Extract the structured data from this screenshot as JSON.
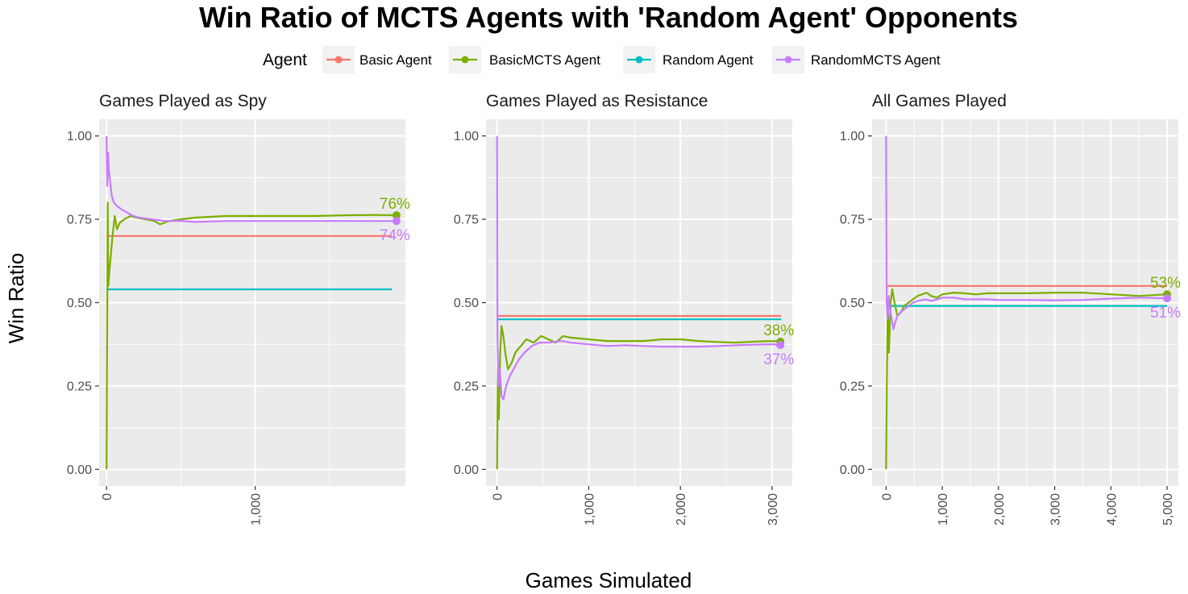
{
  "chart_data": {
    "type": "line",
    "title": "Win Ratio of MCTS Agents with 'Random Agent' Opponents",
    "xlabel": "Games Simulated",
    "ylabel": "Win Ratio",
    "legend": {
      "title": "Agent",
      "placement": "top",
      "entries": [
        {
          "name": "Basic Agent",
          "color": "#F8766D"
        },
        {
          "name": "BasicMCTS Agent",
          "color": "#7CAE00"
        },
        {
          "name": "Random Agent",
          "color": "#00BFC4"
        },
        {
          "name": "RandomMCTS Agent",
          "color": "#C77CFF"
        }
      ]
    },
    "grid": true,
    "panels": [
      {
        "title": "Games Played as Spy",
        "xlim": [
          -50,
          2010
        ],
        "ylim": [
          -0.05,
          1.05
        ],
        "xticks": [
          0,
          1000
        ],
        "xtick_labels": [
          "0",
          "1,000"
        ],
        "yticks": [
          0,
          0.25,
          0.5,
          0.75,
          1.0
        ],
        "ytick_labels": [
          "0.00",
          "0.25",
          "0.50",
          "0.75",
          "1.00"
        ],
        "series": [
          {
            "name": "Basic Agent",
            "points": [
              [
                0,
                0.7
              ],
              [
                1920,
                0.7
              ]
            ]
          },
          {
            "name": "Random Agent",
            "points": [
              [
                0,
                0.54
              ],
              [
                1920,
                0.54
              ]
            ]
          },
          {
            "name": "BasicMCTS Agent",
            "points": [
              [
                0,
                0.0
              ],
              [
                5,
                0.5
              ],
              [
                8,
                0.8
              ],
              [
                12,
                0.55
              ],
              [
                20,
                0.6
              ],
              [
                30,
                0.65
              ],
              [
                40,
                0.7
              ],
              [
                55,
                0.76
              ],
              [
                70,
                0.72
              ],
              [
                90,
                0.74
              ],
              [
                120,
                0.75
              ],
              [
                160,
                0.76
              ],
              [
                200,
                0.755
              ],
              [
                260,
                0.75
              ],
              [
                320,
                0.745
              ],
              [
                360,
                0.735
              ],
              [
                420,
                0.745
              ],
              [
                500,
                0.75
              ],
              [
                600,
                0.755
              ],
              [
                800,
                0.76
              ],
              [
                1000,
                0.76
              ],
              [
                1200,
                0.76
              ],
              [
                1400,
                0.76
              ],
              [
                1600,
                0.762
              ],
              [
                1800,
                0.763
              ],
              [
                1950,
                0.762
              ]
            ]
          },
          {
            "name": "RandomMCTS Agent",
            "points": [
              [
                0,
                1.0
              ],
              [
                5,
                0.85
              ],
              [
                10,
                0.95
              ],
              [
                15,
                0.9
              ],
              [
                25,
                0.86
              ],
              [
                35,
                0.82
              ],
              [
                50,
                0.8
              ],
              [
                70,
                0.79
              ],
              [
                100,
                0.78
              ],
              [
                140,
                0.77
              ],
              [
                180,
                0.76
              ],
              [
                220,
                0.755
              ],
              [
                300,
                0.75
              ],
              [
                400,
                0.745
              ],
              [
                500,
                0.745
              ],
              [
                600,
                0.742
              ],
              [
                800,
                0.745
              ],
              [
                1000,
                0.745
              ],
              [
                1200,
                0.745
              ],
              [
                1400,
                0.745
              ],
              [
                1600,
                0.745
              ],
              [
                1800,
                0.745
              ],
              [
                1950,
                0.745
              ]
            ]
          }
        ],
        "end_labels": [
          {
            "name": "BasicMCTS Agent",
            "x": 1950,
            "y": 0.762,
            "text": "76%",
            "position": "above"
          },
          {
            "name": "RandomMCTS Agent",
            "x": 1950,
            "y": 0.745,
            "text": "74%",
            "position": "below"
          }
        ]
      },
      {
        "title": "Games Played as Resistance",
        "xlim": [
          -120,
          3220
        ],
        "ylim": [
          -0.05,
          1.05
        ],
        "xticks": [
          0,
          1000,
          2000,
          3000
        ],
        "xtick_labels": [
          "0",
          "1,000",
          "2,000",
          "3,000"
        ],
        "yticks": [
          0,
          0.25,
          0.5,
          0.75,
          1.0
        ],
        "ytick_labels": [
          "0.00",
          "0.25",
          "0.50",
          "0.75",
          "1.00"
        ],
        "series": [
          {
            "name": "Basic Agent",
            "points": [
              [
                0,
                0.46
              ],
              [
                3100,
                0.46
              ]
            ]
          },
          {
            "name": "Random Agent",
            "points": [
              [
                0,
                0.45
              ],
              [
                3100,
                0.45
              ]
            ]
          },
          {
            "name": "BasicMCTS Agent",
            "points": [
              [
                0,
                0.0
              ],
              [
                10,
                0.3
              ],
              [
                20,
                0.15
              ],
              [
                35,
                0.35
              ],
              [
                50,
                0.43
              ],
              [
                70,
                0.4
              ],
              [
                90,
                0.35
              ],
              [
                120,
                0.3
              ],
              [
                160,
                0.32
              ],
              [
                200,
                0.35
              ],
              [
                260,
                0.37
              ],
              [
                320,
                0.39
              ],
              [
                400,
                0.38
              ],
              [
                480,
                0.4
              ],
              [
                560,
                0.39
              ],
              [
                640,
                0.38
              ],
              [
                720,
                0.4
              ],
              [
                800,
                0.395
              ],
              [
                1000,
                0.39
              ],
              [
                1200,
                0.385
              ],
              [
                1400,
                0.385
              ],
              [
                1600,
                0.385
              ],
              [
                1800,
                0.39
              ],
              [
                2000,
                0.39
              ],
              [
                2200,
                0.385
              ],
              [
                2400,
                0.382
              ],
              [
                2600,
                0.38
              ],
              [
                2800,
                0.383
              ],
              [
                3000,
                0.385
              ],
              [
                3090,
                0.383
              ]
            ]
          },
          {
            "name": "RandomMCTS Agent",
            "points": [
              [
                0,
                1.0
              ],
              [
                5,
                0.4
              ],
              [
                15,
                0.25
              ],
              [
                30,
                0.3
              ],
              [
                50,
                0.22
              ],
              [
                70,
                0.21
              ],
              [
                100,
                0.25
              ],
              [
                140,
                0.28
              ],
              [
                180,
                0.3
              ],
              [
                240,
                0.33
              ],
              [
                300,
                0.35
              ],
              [
                380,
                0.37
              ],
              [
                460,
                0.38
              ],
              [
                560,
                0.38
              ],
              [
                700,
                0.385
              ],
              [
                800,
                0.38
              ],
              [
                1000,
                0.375
              ],
              [
                1200,
                0.37
              ],
              [
                1400,
                0.372
              ],
              [
                1600,
                0.37
              ],
              [
                1800,
                0.368
              ],
              [
                2000,
                0.368
              ],
              [
                2200,
                0.368
              ],
              [
                2400,
                0.37
              ],
              [
                2600,
                0.372
              ],
              [
                2800,
                0.374
              ],
              [
                3000,
                0.375
              ],
              [
                3090,
                0.373
              ]
            ]
          }
        ],
        "end_labels": [
          {
            "name": "BasicMCTS Agent",
            "x": 3090,
            "y": 0.383,
            "text": "38%",
            "position": "above"
          },
          {
            "name": "RandomMCTS Agent",
            "x": 3090,
            "y": 0.373,
            "text": "37%",
            "position": "below"
          }
        ]
      },
      {
        "title": "All Games Played",
        "xlim": [
          -250,
          5200
        ],
        "ylim": [
          -0.05,
          1.05
        ],
        "xticks": [
          0,
          1000,
          2000,
          3000,
          4000,
          5000
        ],
        "xtick_labels": [
          "0",
          "1,000",
          "2,000",
          "3,000",
          "4,000",
          "5,000"
        ],
        "yticks": [
          0,
          0.25,
          0.5,
          0.75,
          1.0
        ],
        "ytick_labels": [
          "0.00",
          "0.25",
          "0.50",
          "0.75",
          "1.00"
        ],
        "series": [
          {
            "name": "Basic Agent",
            "points": [
              [
                0,
                0.55
              ],
              [
                5000,
                0.55
              ]
            ]
          },
          {
            "name": "Random Agent",
            "points": [
              [
                0,
                0.49
              ],
              [
                5000,
                0.49
              ]
            ]
          },
          {
            "name": "BasicMCTS Agent",
            "points": [
              [
                0,
                0.0
              ],
              [
                15,
                0.3
              ],
              [
                30,
                0.5
              ],
              [
                50,
                0.35
              ],
              [
                80,
                0.5
              ],
              [
                110,
                0.54
              ],
              [
                150,
                0.5
              ],
              [
                200,
                0.46
              ],
              [
                260,
                0.47
              ],
              [
                320,
                0.49
              ],
              [
                400,
                0.5
              ],
              [
                480,
                0.51
              ],
              [
                560,
                0.52
              ],
              [
                640,
                0.525
              ],
              [
                720,
                0.53
              ],
              [
                800,
                0.52
              ],
              [
                900,
                0.515
              ],
              [
                1000,
                0.525
              ],
              [
                1200,
                0.53
              ],
              [
                1400,
                0.528
              ],
              [
                1600,
                0.525
              ],
              [
                1800,
                0.528
              ],
              [
                2000,
                0.528
              ],
              [
                2500,
                0.528
              ],
              [
                3000,
                0.53
              ],
              [
                3500,
                0.53
              ],
              [
                4000,
                0.525
              ],
              [
                4500,
                0.52
              ],
              [
                5000,
                0.525
              ]
            ]
          },
          {
            "name": "RandomMCTS Agent",
            "points": [
              [
                0,
                1.0
              ],
              [
                10,
                0.5
              ],
              [
                25,
                0.45
              ],
              [
                45,
                0.52
              ],
              [
                70,
                0.48
              ],
              [
                100,
                0.45
              ],
              [
                130,
                0.42
              ],
              [
                160,
                0.44
              ],
              [
                200,
                0.46
              ],
              [
                250,
                0.47
              ],
              [
                320,
                0.48
              ],
              [
                400,
                0.49
              ],
              [
                480,
                0.5
              ],
              [
                560,
                0.505
              ],
              [
                700,
                0.51
              ],
              [
                800,
                0.505
              ],
              [
                900,
                0.51
              ],
              [
                1000,
                0.515
              ],
              [
                1200,
                0.515
              ],
              [
                1400,
                0.51
              ],
              [
                1600,
                0.51
              ],
              [
                1800,
                0.51
              ],
              [
                2000,
                0.508
              ],
              [
                2500,
                0.508
              ],
              [
                3000,
                0.507
              ],
              [
                3500,
                0.508
              ],
              [
                4000,
                0.512
              ],
              [
                4500,
                0.515
              ],
              [
                5000,
                0.513
              ]
            ]
          }
        ],
        "end_labels": [
          {
            "name": "BasicMCTS Agent",
            "x": 5000,
            "y": 0.525,
            "text": "53%",
            "position": "above"
          },
          {
            "name": "RandomMCTS Agent",
            "x": 5000,
            "y": 0.513,
            "text": "51%",
            "position": "below"
          }
        ]
      }
    ]
  }
}
